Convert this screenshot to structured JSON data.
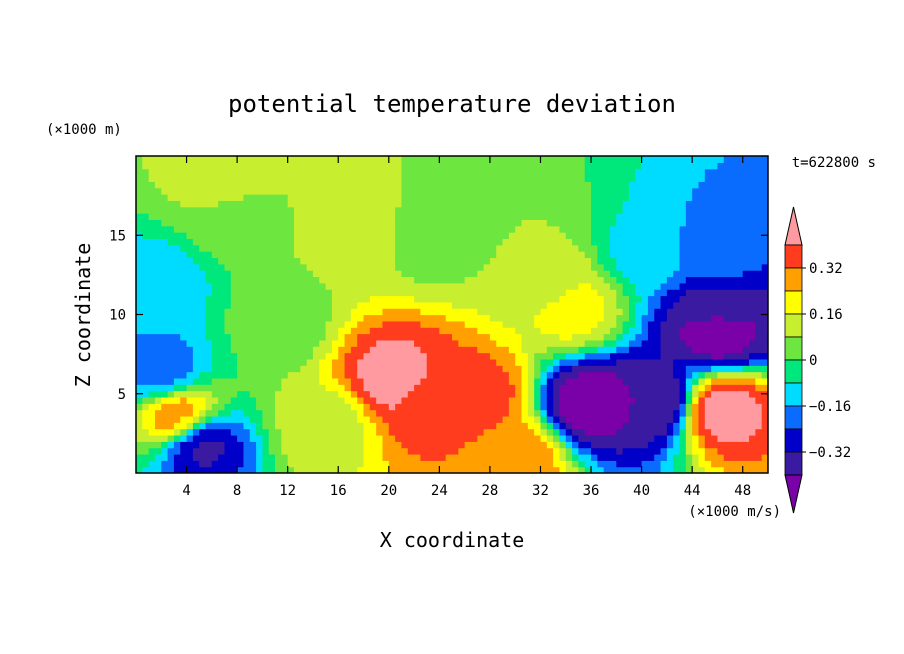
{
  "chart_data": {
    "type": "heatmap",
    "title": "potential temperature deviation",
    "xlabel": "X coordinate",
    "ylabel": "Z coordinate",
    "x_units": "(×1000 m/s)",
    "y_units": "(×1000 m)",
    "time_label": "t=622800 s",
    "xlim": [
      0,
      50
    ],
    "ylim": [
      0,
      20
    ],
    "x_ticks": [
      4,
      8,
      12,
      16,
      20,
      24,
      28,
      32,
      36,
      40,
      44,
      48
    ],
    "y_ticks": [
      5,
      10,
      15
    ],
    "colorbar": {
      "levels": [
        -0.48,
        -0.4,
        -0.32,
        -0.24,
        -0.16,
        -0.08,
        0,
        0.08,
        0.16,
        0.24,
        0.32,
        0.4
      ],
      "colors": [
        "#7a00a8",
        "#3a1aa0",
        "#0000c8",
        "#0a6cff",
        "#00dcff",
        "#00e87c",
        "#6ee640",
        "#c8ee30",
        "#ffff00",
        "#ffa000",
        "#ff3c1e",
        "#ff9aa0"
      ],
      "tick_labels": [
        "0.32",
        "0.16",
        "0",
        "−0.16",
        "−0.32"
      ],
      "tick_values": [
        0.32,
        0.16,
        0,
        -0.16,
        -0.32
      ],
      "extend": "both"
    },
    "features": [
      {
        "x": 34.5,
        "z": 10.5,
        "value": 0.2
      },
      {
        "x": 33,
        "z": 12,
        "value": 0.12
      },
      {
        "x": 31,
        "z": 14,
        "value": 0.08
      },
      {
        "x": 46,
        "z": 14,
        "value": -0.2
      },
      {
        "x": 46,
        "z": 10,
        "value": -0.36
      },
      {
        "x": 46,
        "z": 9,
        "value": -0.46
      },
      {
        "x": 36,
        "z": 4.5,
        "value": -0.46
      },
      {
        "x": 41,
        "z": 4.5,
        "value": -0.4
      },
      {
        "x": 46.5,
        "z": 4,
        "value": 0.44
      },
      {
        "x": 20.5,
        "z": 6,
        "value": 0.44
      },
      {
        "x": 23.5,
        "z": 4.5,
        "value": 0.36
      },
      {
        "x": 27,
        "z": 5,
        "value": 0.36
      },
      {
        "x": 3.5,
        "z": 3.5,
        "value": 0.32
      },
      {
        "x": 5,
        "z": 2,
        "value": -0.36
      },
      {
        "x": 2,
        "z": 6.5,
        "value": -0.2
      },
      {
        "x": 15,
        "z": 3,
        "value": 0.12
      },
      {
        "x": 30,
        "z": 1,
        "value": 0.3
      },
      {
        "x": 17,
        "z": 15.5,
        "value": 0.12
      },
      {
        "x": 8,
        "z": 16,
        "value": 0.05
      },
      {
        "x": 24,
        "z": 15,
        "value": 0.04
      },
      {
        "x": 40,
        "z": 14,
        "value": -0.1
      },
      {
        "x": 2,
        "z": 12,
        "value": -0.12
      },
      {
        "x": 11,
        "z": 9.5,
        "value": 0.03
      },
      {
        "x": 7,
        "z": 18.5,
        "value": 0.12
      }
    ]
  }
}
